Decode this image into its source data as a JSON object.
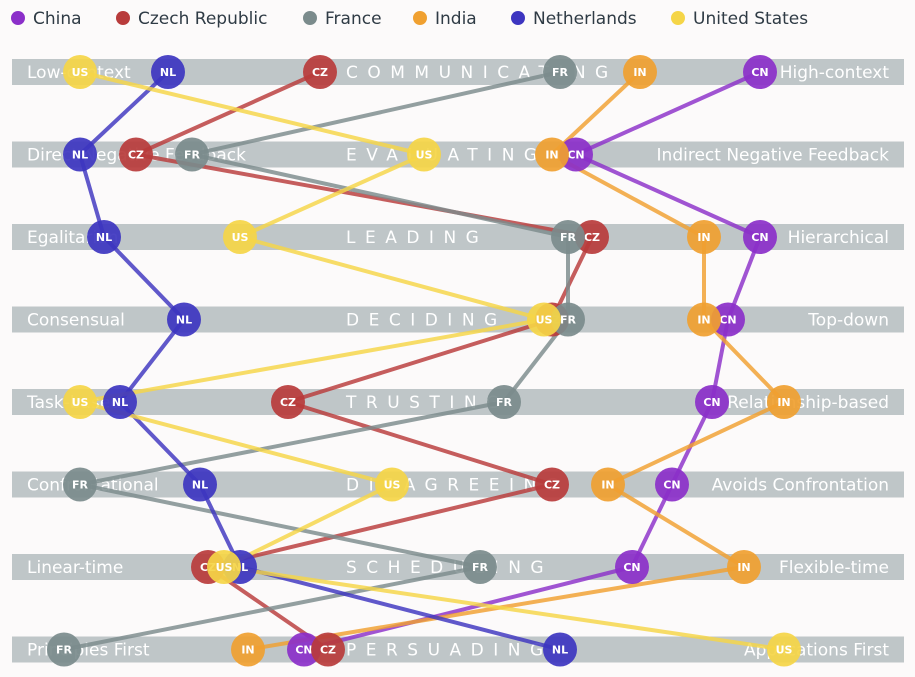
{
  "chart_data": {
    "type": "line",
    "x_range": [
      0,
      100
    ],
    "legend_position": "top",
    "dimensions": [
      {
        "name": "COMMUNICATING",
        "left": "Low-context",
        "right": "High-context"
      },
      {
        "name": "EVALUATING",
        "left": "Direct Negative Feedback",
        "right": "Indirect Negative Feedback"
      },
      {
        "name": "LEADING",
        "left": "Egalitarian",
        "right": "Hierarchical"
      },
      {
        "name": "DECIDING",
        "left": "Consensual",
        "right": "Top-down"
      },
      {
        "name": "TRUSTING",
        "left": "Task-based",
        "right": "Relationship-based"
      },
      {
        "name": "DISAGREEING",
        "left": "Confrontational",
        "right": "Avoids Confrontation"
      },
      {
        "name": "SCHEDULING",
        "left": "Linear-time",
        "right": "Flexible-time"
      },
      {
        "name": "PERSUADING",
        "left": "Principles First",
        "right": "Applications First"
      }
    ],
    "series": [
      {
        "name": "China",
        "code": "CN",
        "color": "#8b2fc9",
        "values": [
          90,
          67,
          90,
          86,
          84,
          79,
          74,
          33
        ]
      },
      {
        "name": "Czech Republic",
        "code": "CZ",
        "color": "#b83b3b",
        "values": [
          35,
          12,
          69,
          64,
          31,
          64,
          21,
          36
        ]
      },
      {
        "name": "France",
        "code": "FR",
        "color": "#7b8b8c",
        "values": [
          65,
          19,
          66,
          66,
          58,
          5,
          55,
          3
        ]
      },
      {
        "name": "India",
        "code": "IN",
        "color": "#f0a030",
        "values": [
          75,
          64,
          83,
          83,
          93,
          71,
          88,
          26
        ]
      },
      {
        "name": "Netherlands",
        "code": "NL",
        "color": "#3d35c0",
        "values": [
          16,
          5,
          8,
          18,
          10,
          20,
          25,
          65
        ]
      },
      {
        "name": "United States",
        "code": "US",
        "color": "#f5d547",
        "values": [
          5,
          48,
          25,
          63,
          5,
          44,
          23,
          93
        ]
      }
    ]
  }
}
